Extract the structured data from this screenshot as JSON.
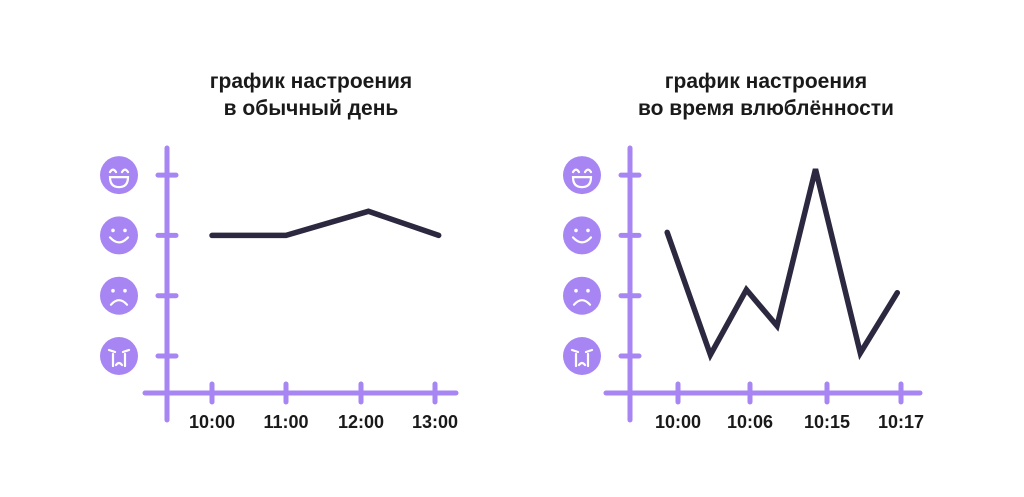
{
  "chart_data": [
    {
      "type": "line",
      "title_lines": [
        "график настроения",
        "в обычный день"
      ],
      "x": [
        "10:00",
        "11:00",
        "12:00",
        "13:00"
      ],
      "y_levels": [
        {
          "mood": "laughing",
          "icon": "laughing-face-icon"
        },
        {
          "mood": "happy",
          "icon": "smiling-face-icon"
        },
        {
          "mood": "sad",
          "icon": "sad-face-icon"
        },
        {
          "mood": "crying",
          "icon": "crying-face-icon"
        }
      ],
      "ylim": [
        1,
        4
      ],
      "series": [
        {
          "x": [
            0,
            1,
            2.1,
            3.05
          ],
          "values": [
            3,
            3,
            3.4,
            3
          ]
        }
      ],
      "grid": false
    },
    {
      "type": "line",
      "title_lines": [
        "график настроения",
        "во время влюблённости"
      ],
      "x": [
        "10:00",
        "10:06",
        "10:15",
        "10:17"
      ],
      "y_levels": [
        {
          "mood": "laughing",
          "icon": "laughing-face-icon"
        },
        {
          "mood": "happy",
          "icon": "smiling-face-icon"
        },
        {
          "mood": "sad",
          "icon": "sad-face-icon"
        },
        {
          "mood": "crying",
          "icon": "crying-face-icon"
        }
      ],
      "ylim": [
        1,
        4
      ],
      "series": [
        {
          "x": [
            -0.15,
            0.45,
            0.95,
            1.35,
            1.85,
            2.45,
            2.95
          ],
          "values": [
            3.05,
            1.02,
            2.1,
            1.5,
            4.1,
            1.05,
            2.05
          ]
        }
      ],
      "grid": false
    }
  ],
  "colors": {
    "axis": "#a786f4",
    "line": "#2b2840",
    "icon_fill": "#a786f4",
    "icon_stroke": "#ffffff"
  }
}
